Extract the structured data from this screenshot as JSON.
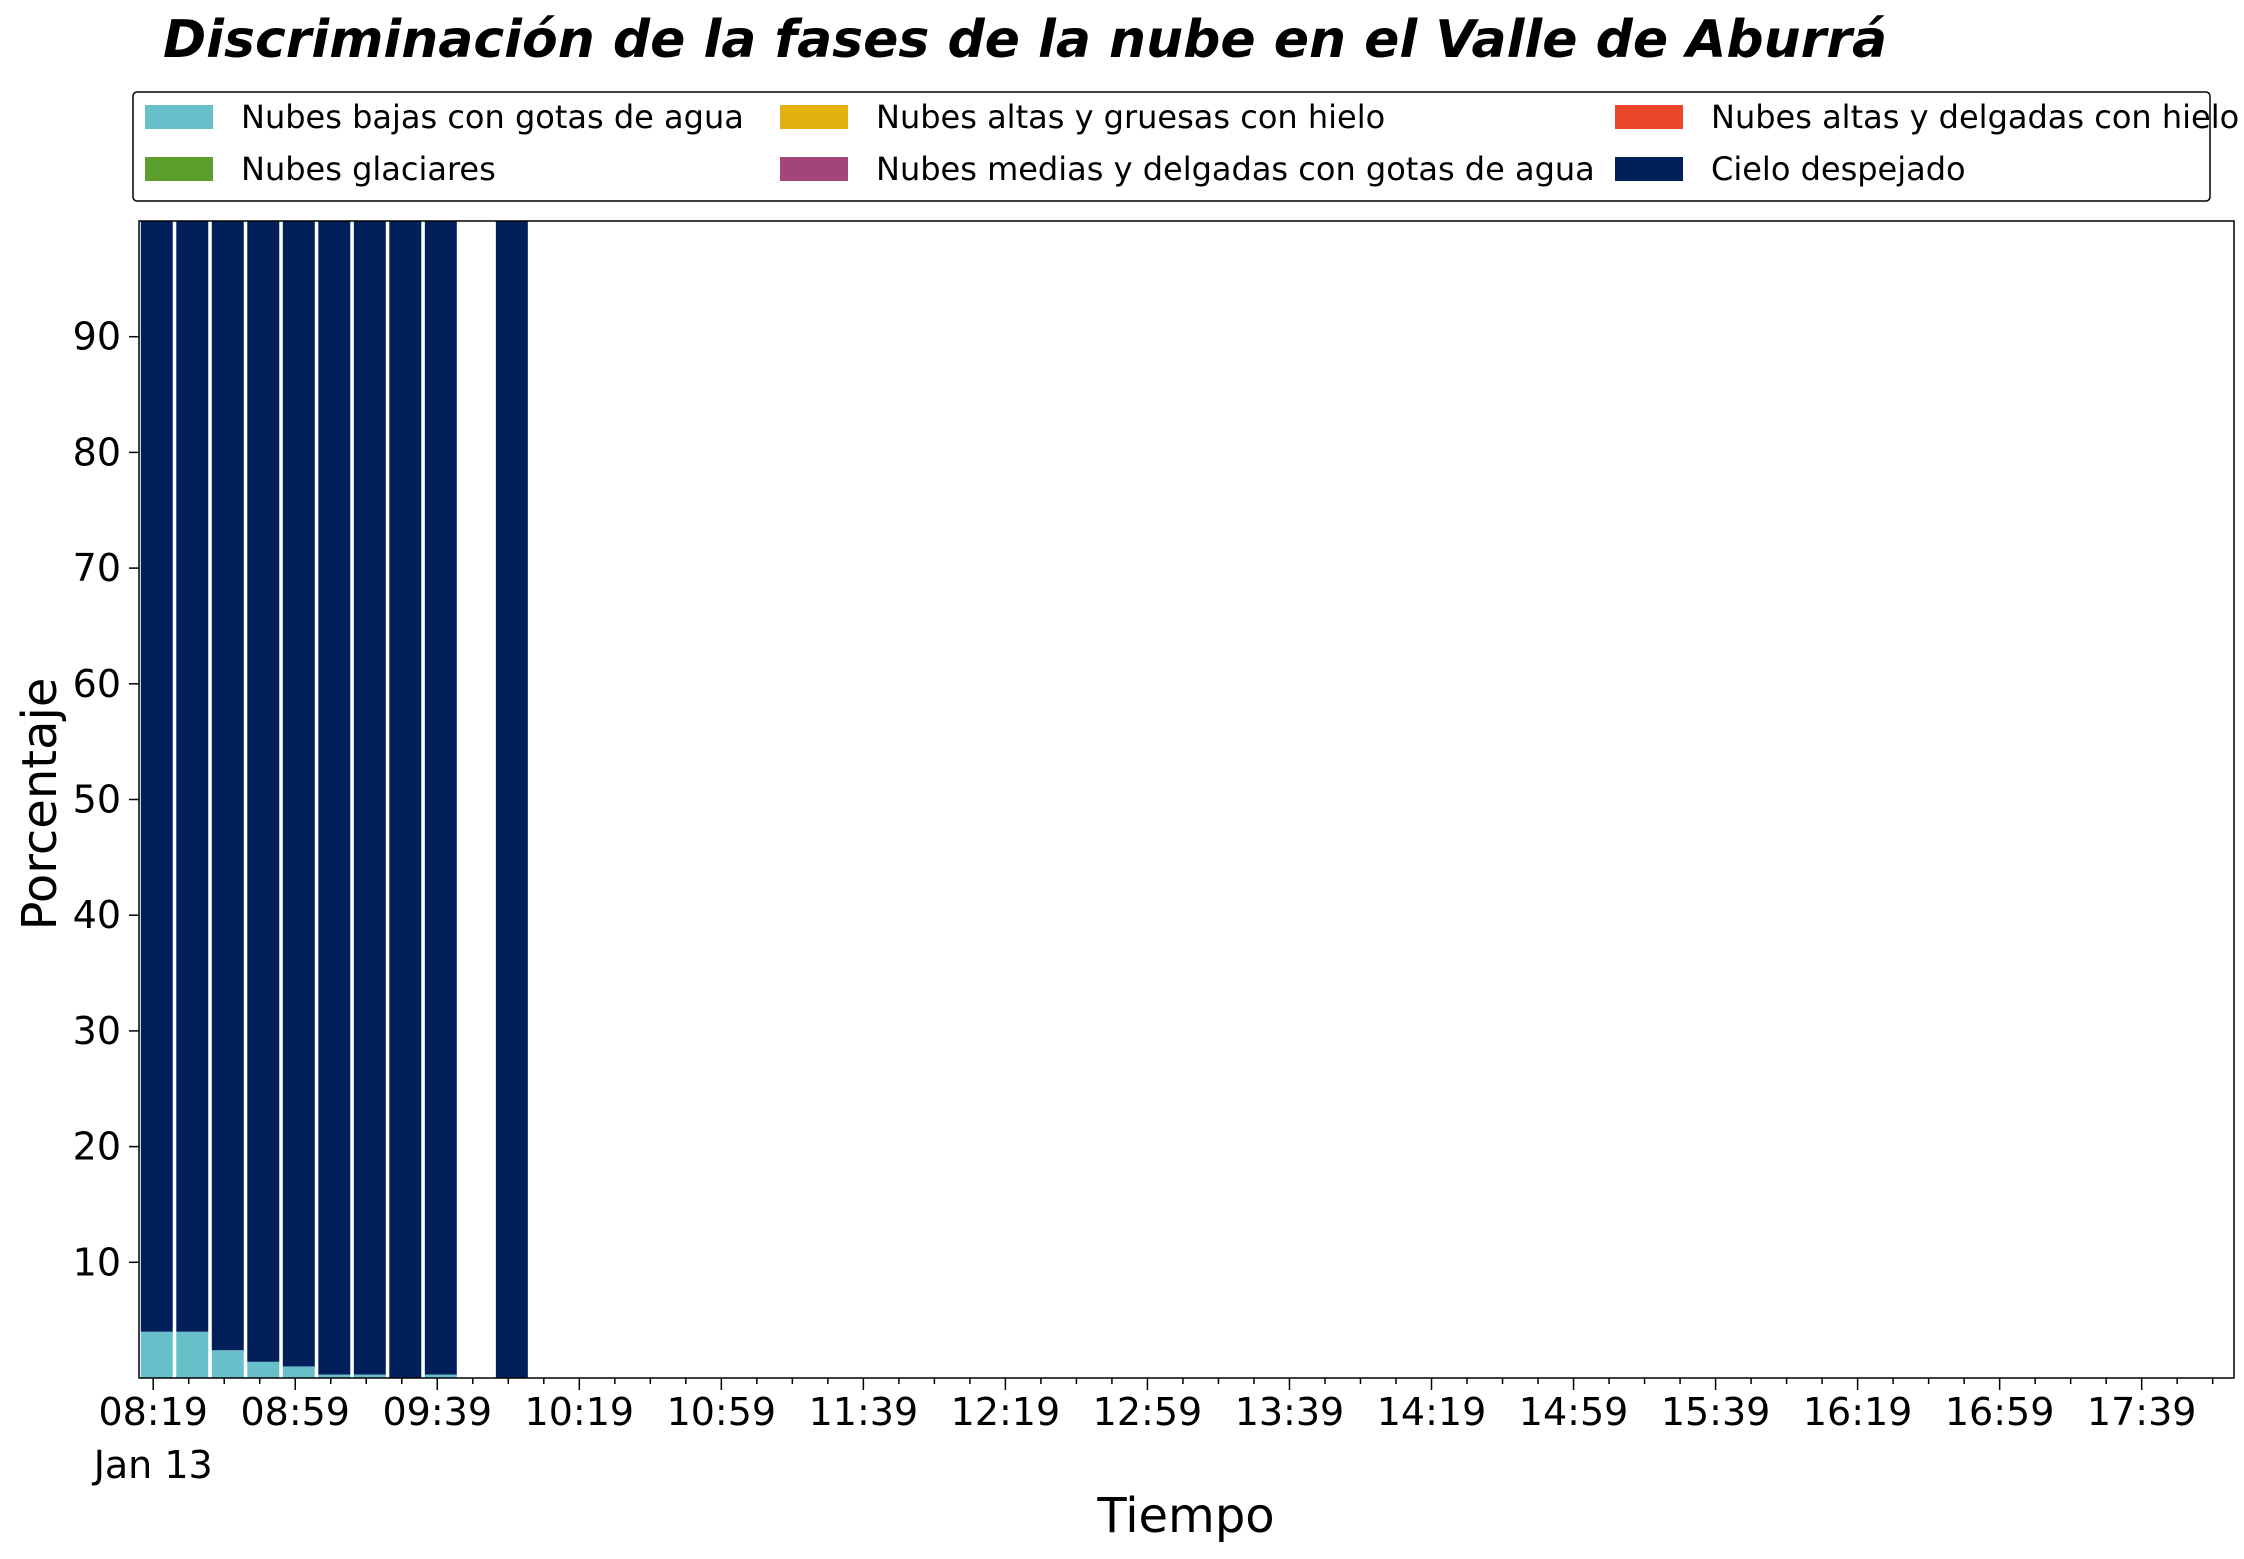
{
  "chart_data": {
    "type": "bar",
    "stacked": true,
    "title": "Discriminación de la fases de la nube en el Valle de Aburrá",
    "xlabel": "Tiempo",
    "ylabel": "Porcentaje",
    "ylim": [
      0,
      100
    ],
    "yticks": [
      10,
      20,
      30,
      40,
      50,
      60,
      70,
      80,
      90
    ],
    "x_ticks": [
      "08:19",
      "08:59",
      "09:39",
      "10:19",
      "10:59",
      "11:39",
      "12:19",
      "12:59",
      "13:39",
      "14:19",
      "14:59",
      "15:39",
      "16:19",
      "16:59",
      "17:39"
    ],
    "x_date_label": "Jan 13",
    "x_range_minutes": [
      495,
      1085
    ],
    "bar_width_minutes": 9,
    "legend_placement": "top",
    "grid": false,
    "x": [
      "08:20",
      "08:30",
      "08:40",
      "08:50",
      "09:00",
      "09:10",
      "09:20",
      "09:30",
      "09:40",
      "10:00"
    ],
    "series": [
      {
        "name": "Nubes bajas con gotas de agua",
        "color": "#66bfc9",
        "values": [
          4,
          4,
          2.4,
          1.4,
          1,
          0.3,
          0.3,
          0,
          0.3,
          0
        ]
      },
      {
        "name": "Nubes glaciares",
        "color": "#5b9e2b",
        "values": [
          0,
          0,
          0,
          0,
          0,
          0,
          0,
          0,
          0,
          0
        ]
      },
      {
        "name": "Nubes altas y gruesas con hielo",
        "color": "#e3b211",
        "values": [
          0,
          0,
          0,
          0,
          0,
          0,
          0,
          0,
          0,
          0
        ]
      },
      {
        "name": "Nubes medias y delgadas con gotas de agua",
        "color": "#a4457a",
        "values": [
          0,
          0,
          0,
          0,
          0,
          0,
          0,
          0,
          0,
          0
        ]
      },
      {
        "name": "Nubes altas y delgadas con hielo",
        "color": "#e8472a",
        "values": [
          0,
          0,
          0,
          0,
          0,
          0,
          0,
          0,
          0,
          0
        ]
      },
      {
        "name": "Cielo despejado",
        "color": "#001f5b",
        "values": [
          96,
          96,
          97.6,
          98.6,
          99,
          99.7,
          99.7,
          100,
          99.7,
          100
        ]
      }
    ]
  }
}
